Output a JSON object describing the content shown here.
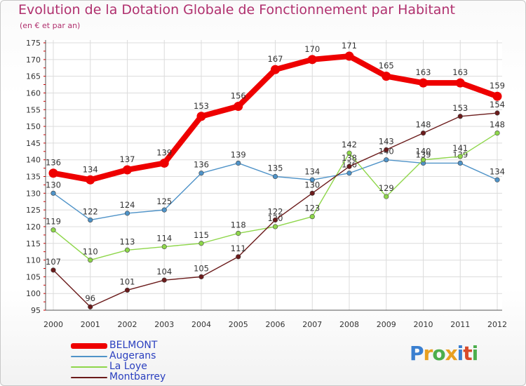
{
  "header": {
    "title": "Evolution de la Dotation Globale de Fonctionnement par Habitant",
    "subtitle": "(en € et par an)"
  },
  "logo": {
    "letters": [
      "P",
      "r",
      "o",
      "x",
      "i",
      "t",
      "i"
    ],
    "colors": [
      "#3a7fd0",
      "#e8a020",
      "#4cae4c",
      "#e8a020",
      "#3a7fd0",
      "#d84a2a",
      "#4cae4c"
    ]
  },
  "chart_data": {
    "type": "line",
    "x": [
      "2000",
      "2001",
      "2002",
      "2003",
      "2004",
      "2005",
      "2006",
      "2007",
      "2008",
      "2009",
      "2010",
      "2011",
      "2012"
    ],
    "ylim": [
      95,
      175
    ],
    "yticks": [
      95,
      100,
      105,
      110,
      115,
      120,
      125,
      130,
      135,
      140,
      145,
      150,
      155,
      160,
      165,
      170,
      175
    ],
    "grid": true,
    "legend_placement": "bottom-left",
    "series": [
      {
        "name": "BELMONT",
        "color": "#ee0000",
        "values": [
          136,
          134,
          137,
          139,
          153,
          156,
          167,
          170,
          171,
          165,
          163,
          163,
          159
        ]
      },
      {
        "name": "Augerans",
        "color": "#4f93c8",
        "values": [
          130,
          122,
          124,
          125,
          136,
          139,
          135,
          134,
          136,
          140,
          139,
          139,
          134
        ]
      },
      {
        "name": "La Loye",
        "color": "#8ed64a",
        "values": [
          119,
          110,
          113,
          114,
          115,
          118,
          120,
          123,
          142,
          129,
          140,
          141,
          148
        ]
      },
      {
        "name": "Montbarrey",
        "color": "#6b1b1b",
        "values": [
          107,
          96,
          101,
          104,
          105,
          111,
          122,
          130,
          138,
          143,
          148,
          153,
          154
        ]
      }
    ]
  }
}
